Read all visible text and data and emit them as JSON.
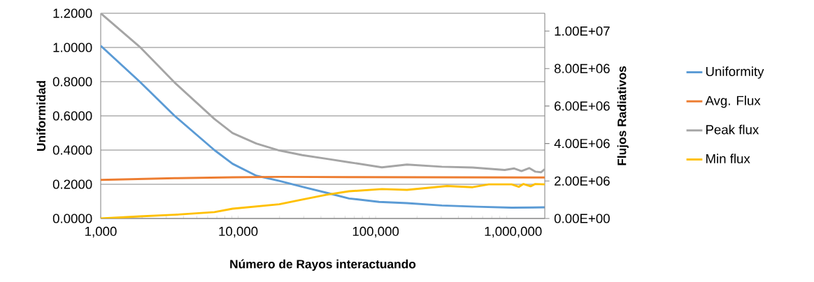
{
  "chart_data": {
    "type": "line",
    "xlabel": "Número de Rayos interactuando",
    "ylabel": "Uniformidad",
    "y2label": "Flujos Radiativos",
    "log": "x",
    "grid": "y",
    "legend": "right",
    "xlim": [
      1000,
      1700000
    ],
    "xticks": [
      {
        "value": 1000,
        "label": "1,000"
      },
      {
        "value": 10000,
        "label": "10,000"
      },
      {
        "value": 100000,
        "label": "100,000"
      },
      {
        "value": 1000000,
        "label": "1,000,000"
      }
    ],
    "ylim": [
      0,
      1.2
    ],
    "yticks": [
      {
        "value": 0,
        "label": "0.0000"
      },
      {
        "value": 0.2,
        "label": "0.2000"
      },
      {
        "value": 0.4,
        "label": "0.4000"
      },
      {
        "value": 0.6,
        "label": "0.6000"
      },
      {
        "value": 0.8,
        "label": "0.8000"
      },
      {
        "value": 1.0,
        "label": "1.0000"
      },
      {
        "value": 1.2,
        "label": "1.2000"
      }
    ],
    "y2lim": [
      0,
      10950000
    ],
    "y2ticks": [
      {
        "value": 0,
        "label": "0.00E+00"
      },
      {
        "value": 2000000,
        "label": "2.00E+06"
      },
      {
        "value": 4000000,
        "label": "4.00E+06"
      },
      {
        "value": 6000000,
        "label": "6.00E+06"
      },
      {
        "value": 8000000,
        "label": "8.00E+06"
      },
      {
        "value": 10000000,
        "label": "1.00E+07"
      }
    ],
    "series": [
      {
        "name": "Uniformity",
        "color": "#5b9bd5",
        "x": [
          1000,
          1923,
          3451,
          6714,
          9101,
          13550,
          19900,
          29300,
          43600,
          64100,
          106000,
          169000,
          303000,
          544000,
          977000,
          1700000
        ],
        "values": [
          1.01,
          0.8,
          0.6,
          0.4,
          0.32,
          0.25,
          0.22,
          0.185,
          0.151,
          0.117,
          0.097,
          0.09,
          0.076,
          0.069,
          0.063,
          0.065
        ]
      },
      {
        "name": "Avg. Flux",
        "color": "#ed7d31",
        "axis": "y2",
        "x": [
          1000,
          3451,
          9101,
          19900,
          64100,
          303000,
          1700000
        ],
        "values": [
          2060000,
          2150000,
          2200000,
          2220000,
          2210000,
          2200000,
          2190000
        ]
      },
      {
        "name": "Peak flux",
        "color": "#a5a5a5",
        "axis": "y2",
        "x": [
          1000,
          1923,
          3451,
          6714,
          9101,
          13550,
          19900,
          29300,
          43600,
          64100,
          111000,
          169000,
          303000,
          508000,
          869000,
          1020000,
          1150000,
          1310000,
          1450000,
          1600000,
          1700000
        ],
        "values": [
          10950000,
          9160000,
          7250000,
          5310000,
          4560000,
          4000000,
          3630000,
          3380000,
          3190000,
          3000000,
          2730000,
          2880000,
          2760000,
          2720000,
          2590000,
          2670000,
          2530000,
          2690000,
          2500000,
          2470000,
          2630000
        ]
      },
      {
        "name": "Min flux",
        "color": "#ffc000",
        "axis": "y2",
        "x": [
          1000,
          1923,
          3451,
          6714,
          9101,
          19900,
          29300,
          43600,
          64100,
          111000,
          169000,
          330000,
          508000,
          664000,
          977000,
          1100000,
          1190000,
          1340000,
          1450000,
          1700000
        ],
        "values": [
          0,
          110000,
          200000,
          340000,
          520000,
          760000,
          1010000,
          1260000,
          1450000,
          1570000,
          1530000,
          1730000,
          1670000,
          1820000,
          1820000,
          1690000,
          1840000,
          1720000,
          1840000,
          1820000
        ]
      }
    ]
  }
}
